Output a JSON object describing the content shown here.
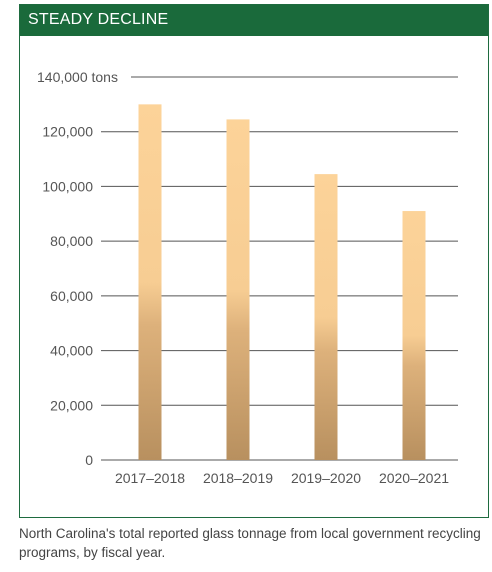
{
  "header": {
    "title": "STEADY DECLINE"
  },
  "caption": "North Carolina's total reported glass tonnage from local government recycling programs, by fiscal year.",
  "colors": {
    "header_bg": "#1a6a3b",
    "bar_top": "#fcd399",
    "bar_bottom": "#b8905f",
    "gridline": "#555555"
  },
  "chart_data": {
    "type": "bar",
    "title": "STEADY DECLINE",
    "categories": [
      "2017–2018",
      "2018–2019",
      "2019–2020",
      "2020–2021"
    ],
    "values": [
      130000,
      124500,
      104500,
      91000
    ],
    "ylim": [
      0,
      140000
    ],
    "yticks": [
      0,
      20000,
      40000,
      60000,
      80000,
      100000,
      120000,
      140000
    ],
    "ytick_labels": [
      "0",
      "20,000",
      "40,000",
      "60,000",
      "80,000",
      "100,000",
      "120,000",
      "140,000 tons"
    ],
    "grid": true,
    "legend": "none"
  }
}
